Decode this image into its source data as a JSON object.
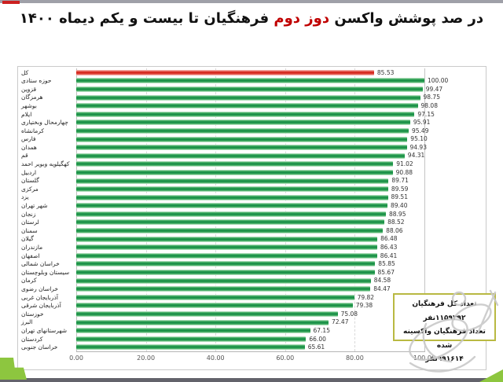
{
  "title": {
    "pre": "در صد پوشش واکسن ",
    "highlight": "دوز دوم",
    "post": " فرهنگیان تا بیست و یکم دیماه ۱۴۰۰"
  },
  "colors": {
    "bar_green": "#128a43",
    "bar_red": "#cf1b10",
    "title_highlight": "#c00000",
    "corner_green": "#8dc63f",
    "infobox_border": "#b9b942"
  },
  "chart_data": {
    "type": "bar",
    "orientation": "horizontal",
    "title": "در صد پوشش واکسن دوز دوم فرهنگیان تا بیست و یکم دیماه ۱۴۰۰",
    "xlim": [
      0,
      100
    ],
    "grid": "vertical-dashed",
    "xticks": [
      "0.00",
      "20.00",
      "40.00",
      "60.00",
      "80.00",
      "100.00"
    ],
    "categories": [
      "کل",
      "حوزه ستادی",
      "قزوین",
      "هرمزگان",
      "بوشهر",
      "ایلام",
      "چهارمحال وبختیاری",
      "کرمانشاه",
      "فارس",
      "همدان",
      "قم",
      "کهگیلویه وبویر احمد",
      "اردبیل",
      "گلستان",
      "مرکزی",
      "یزد",
      "شهر تهران",
      "زنجان",
      "لرستان",
      "سمنان",
      "گیلان",
      "مازندران",
      "اصفهان",
      "خراسان شمالی",
      "سیستان وبلوچستان",
      "کرمان",
      "خراسان رضوی",
      "آذربایجان غربی",
      "آذربایجان شرقی",
      "خوزستان",
      "البرز",
      "شهرستانهای تهران",
      "کردستان",
      "خراسان جنوبی"
    ],
    "values": [
      85.53,
      100.0,
      99.47,
      98.75,
      98.08,
      97.15,
      95.91,
      95.49,
      95.1,
      94.93,
      94.31,
      91.02,
      90.88,
      89.71,
      89.59,
      89.51,
      89.4,
      88.95,
      88.52,
      88.06,
      86.48,
      86.43,
      86.41,
      85.85,
      85.67,
      84.58,
      84.47,
      79.82,
      79.38,
      75.08,
      72.47,
      67.15,
      66.0,
      65.61
    ],
    "value_labels": [
      "85.53",
      "100.00",
      "99.47",
      "98.75",
      "98.08",
      "97.15",
      "95.91",
      "95.49",
      "95.10",
      "94.93",
      "94.31",
      "91.02",
      "90.88",
      "89.71",
      "89.59",
      "89.51",
      "89.40",
      "88.95",
      "88.52",
      "88.06",
      "86.48",
      "86.43",
      "86.41",
      "85.85",
      "85.67",
      "84.58",
      "84.47",
      "79.82",
      "79.38",
      "75.08",
      "72.47",
      "67.15",
      "66.00",
      "65.61"
    ],
    "highlighted_category_index": 0
  },
  "infobox": {
    "line1": "تعداد کل فرهنگیان ۱۱۵۹۳۹۲نفر",
    "line2": "تعداد فرهنگیان واکسینه شده",
    "line3": "۹۹۱۶۱۴نفر"
  }
}
